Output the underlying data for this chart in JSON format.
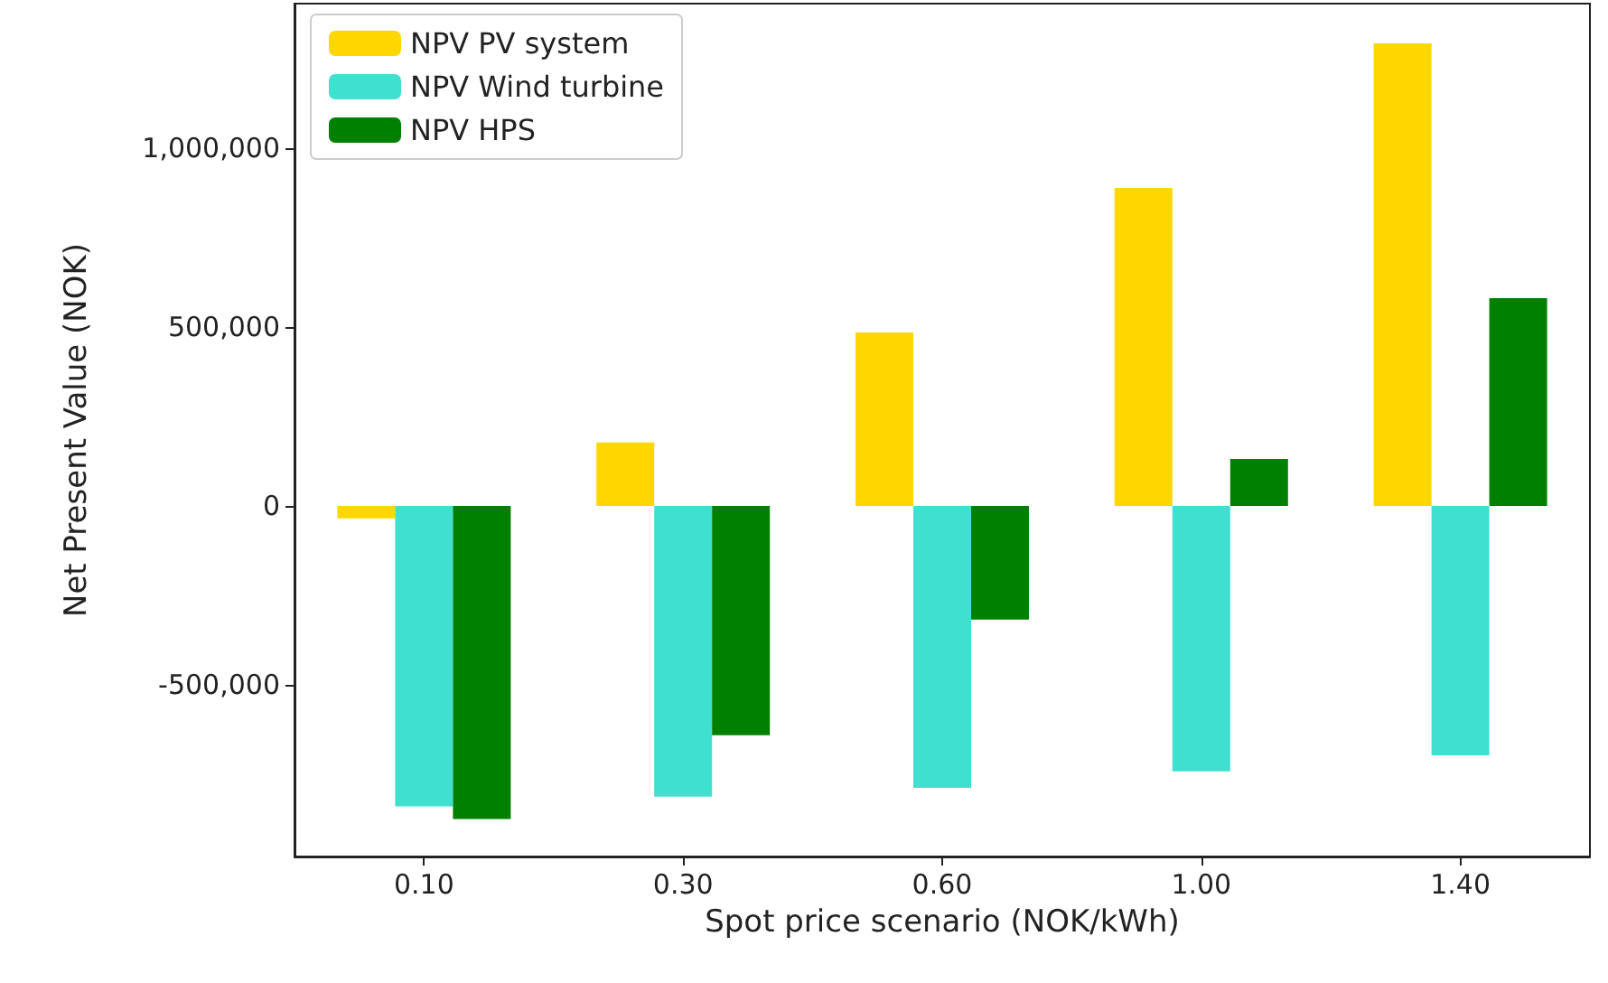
{
  "chart_data": {
    "type": "bar",
    "xlabel": "Spot price scenario (NOK/kWh)",
    "ylabel": "Net Present Value (NOK)",
    "categories": [
      "0.10",
      "0.30",
      "0.60",
      "1.00",
      "1.40"
    ],
    "series": [
      {
        "name": "NPV PV system",
        "color": "#ffd700",
        "values": [
          -35000,
          177000,
          485000,
          889000,
          1293000
        ]
      },
      {
        "name": "NPV Wind turbine",
        "color": "#40e0d0",
        "values": [
          -840000,
          -813000,
          -788000,
          -742000,
          -697000
        ]
      },
      {
        "name": "NPV HPS",
        "color": "#008000",
        "values": [
          -875000,
          -641000,
          -318000,
          131000,
          581000
        ]
      }
    ],
    "ylim": [
      -980000,
      1404000
    ],
    "yticks": [
      {
        "value": -500000,
        "label": "-500,000"
      },
      {
        "value": 0,
        "label": "0"
      },
      {
        "value": 500000,
        "label": "500,000"
      },
      {
        "value": 1000000,
        "label": "1,000,000"
      }
    ],
    "grid": false,
    "legend": "top left"
  }
}
